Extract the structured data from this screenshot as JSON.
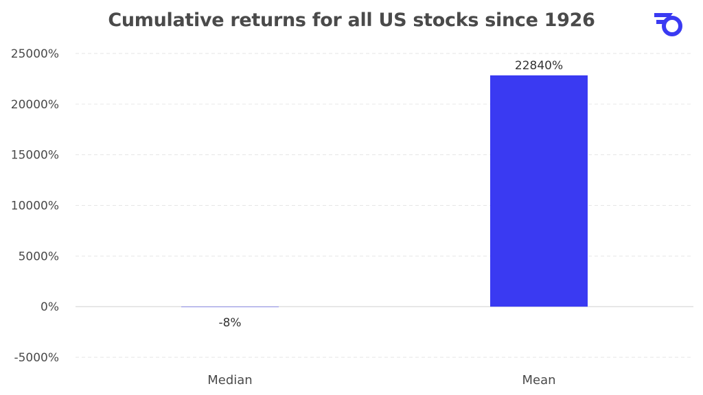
{
  "chart_data": {
    "type": "bar",
    "title": "Cumulative returns for all US stocks since 1926",
    "categories": [
      "Median",
      "Mean"
    ],
    "values": [
      -8,
      22840
    ],
    "data_labels": [
      "-8%",
      "22840%"
    ],
    "y_ticks": [
      -5000,
      0,
      5000,
      10000,
      15000,
      20000,
      25000
    ],
    "y_tick_labels": [
      "-5000%",
      "0%",
      "5000%",
      "10000%",
      "15000%",
      "20000%",
      "25000%"
    ],
    "ylim": [
      -5000,
      25000
    ],
    "xlabel": "",
    "ylabel": "",
    "grid": true,
    "bar_color": "#3a3af2",
    "legend": "none"
  },
  "logo": {
    "icon": "brand-logo-icon",
    "color": "#3a3af2"
  }
}
